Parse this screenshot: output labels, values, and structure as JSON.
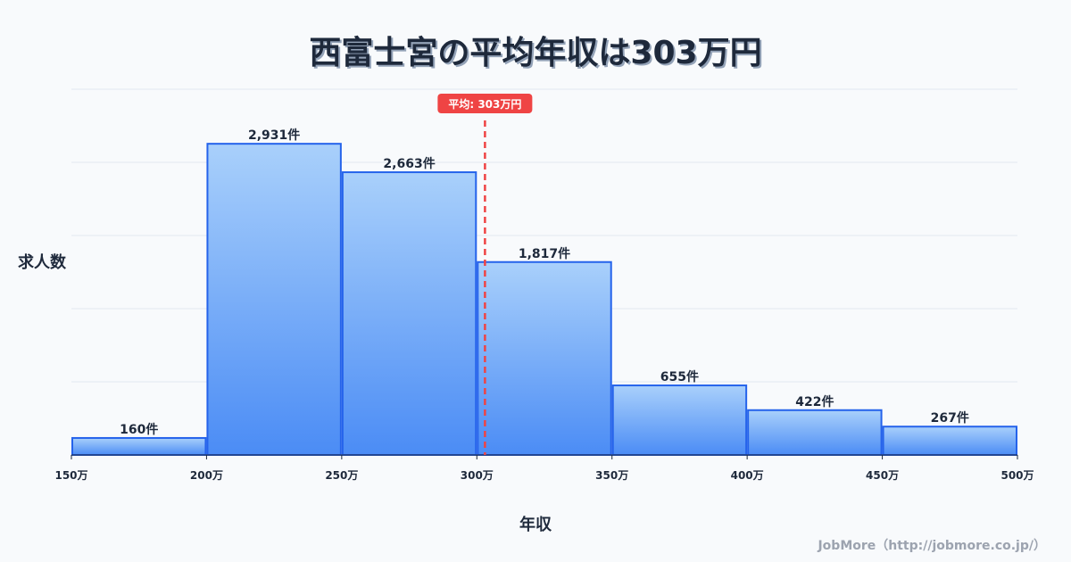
{
  "title": "西富士宮の平均年収は303万円",
  "credit": "JobMore（http://jobmore.co.jp/）",
  "colors": {
    "bar_top": "#a9d0fb",
    "bar_bottom": "#4b8cf5",
    "bar_border": "#2563eb",
    "mean_line": "#ef4444",
    "grid": "#e2e8f0"
  },
  "chart_data": {
    "type": "bar",
    "title": "西富士宮の平均年収は303万円",
    "xlabel": "年収",
    "ylabel": "求人数",
    "bins": [
      [
        150,
        200
      ],
      [
        200,
        250
      ],
      [
        250,
        300
      ],
      [
        300,
        350
      ],
      [
        350,
        400
      ],
      [
        400,
        450
      ],
      [
        450,
        500
      ]
    ],
    "values": [
      160,
      2931,
      2663,
      1817,
      655,
      422,
      267
    ],
    "value_labels": [
      "160件",
      "2,931件",
      "2,663件",
      "1,817件",
      "655件",
      "422件",
      "267件"
    ],
    "xticks": [
      150,
      200,
      250,
      300,
      350,
      400,
      450,
      500
    ],
    "xtick_labels": [
      "150万",
      "200万",
      "250万",
      "300万",
      "350万",
      "400万",
      "450万",
      "500万"
    ],
    "xlim": [
      150,
      500
    ],
    "ylim": [
      0,
      3445
    ],
    "grid": true,
    "mean": 303,
    "mean_label": "平均: 303万円"
  }
}
